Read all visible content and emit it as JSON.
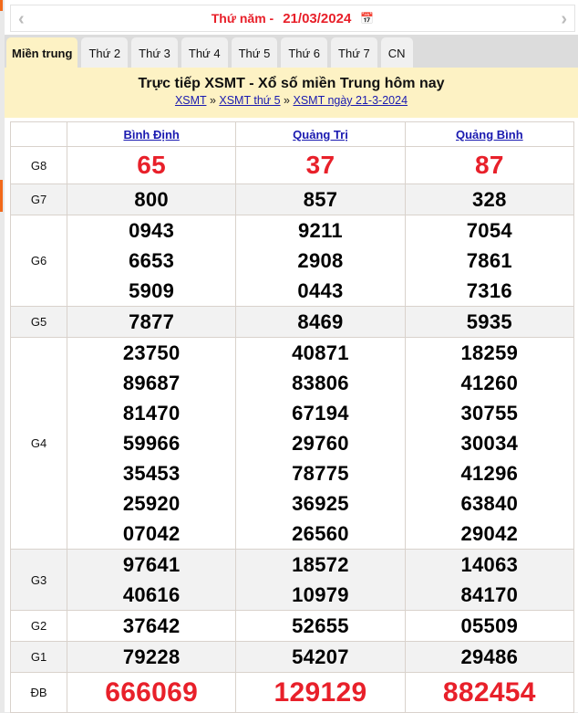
{
  "date_bar": {
    "day_label": "Thứ năm -",
    "date": "21/03/2024",
    "prev_icon": "chevron-left-icon",
    "next_icon": "chevron-right-icon",
    "calendar_icon": "calendar-icon"
  },
  "tabs": [
    {
      "label": "Miền trung",
      "active": true
    },
    {
      "label": "Thứ 2"
    },
    {
      "label": "Thứ 3"
    },
    {
      "label": "Thứ 4"
    },
    {
      "label": "Thứ 5"
    },
    {
      "label": "Thứ 6"
    },
    {
      "label": "Thứ 7"
    },
    {
      "label": "CN"
    }
  ],
  "header": {
    "title": "Trực tiếp XSMT - Xổ số miền Trung hôm nay",
    "breadcrumb": [
      "XSMT",
      "XSMT thứ 5",
      "XSMT ngày 21-3-2024"
    ],
    "separator": "»"
  },
  "table": {
    "provinces": [
      "Bình Định",
      "Quảng Trị",
      "Quảng Bình"
    ],
    "rows": [
      {
        "label": "G8",
        "values": [
          [
            "65"
          ],
          [
            "37"
          ],
          [
            "87"
          ]
        ]
      },
      {
        "label": "G7",
        "values": [
          [
            "800"
          ],
          [
            "857"
          ],
          [
            "328"
          ]
        ]
      },
      {
        "label": "G6",
        "values": [
          [
            "0943",
            "6653",
            "5909"
          ],
          [
            "9211",
            "2908",
            "0443"
          ],
          [
            "7054",
            "7861",
            "7316"
          ]
        ]
      },
      {
        "label": "G5",
        "values": [
          [
            "7877"
          ],
          [
            "8469"
          ],
          [
            "5935"
          ]
        ]
      },
      {
        "label": "G4",
        "values": [
          [
            "23750",
            "89687",
            "81470",
            "59966",
            "35453",
            "25920",
            "07042"
          ],
          [
            "40871",
            "83806",
            "67194",
            "29760",
            "78775",
            "36925",
            "26560"
          ],
          [
            "18259",
            "41260",
            "30755",
            "30034",
            "41296",
            "63840",
            "29042"
          ]
        ]
      },
      {
        "label": "G3",
        "values": [
          [
            "97641",
            "40616"
          ],
          [
            "18572",
            "10979"
          ],
          [
            "14063",
            "84170"
          ]
        ]
      },
      {
        "label": "G2",
        "values": [
          [
            "37642"
          ],
          [
            "52655"
          ],
          [
            "05509"
          ]
        ]
      },
      {
        "label": "G1",
        "values": [
          [
            "79228"
          ],
          [
            "54207"
          ],
          [
            "29486"
          ]
        ]
      },
      {
        "label": "ĐB",
        "values": [
          [
            "666069"
          ],
          [
            "129129"
          ],
          [
            "882454"
          ]
        ]
      }
    ]
  },
  "colors": {
    "accent_red": "#e8202a",
    "header_bg": "#fdf2c4",
    "link": "#1a1ab0"
  }
}
